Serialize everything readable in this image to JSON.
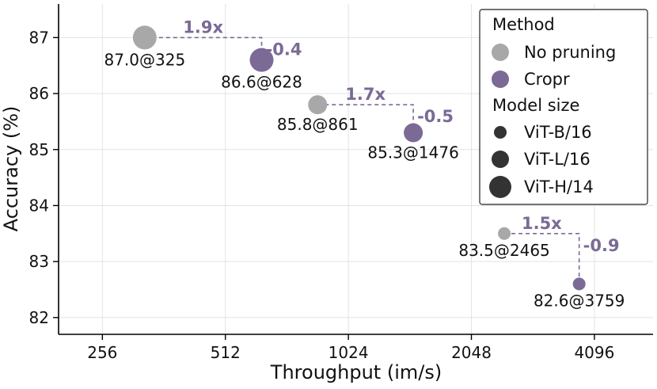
{
  "chart_data": {
    "type": "scatter",
    "xlabel": "Throughput (im/s)",
    "ylabel": "Accuracy (%)",
    "x_scale": "log2",
    "xlim": [
      200,
      5700
    ],
    "ylim": [
      81.7,
      87.6
    ],
    "x_ticks": [
      256,
      512,
      1024,
      2048,
      4096
    ],
    "x_tick_labels": [
      "256",
      "512",
      "1024",
      "2048",
      "4096"
    ],
    "y_ticks": [
      82,
      83,
      84,
      85,
      86,
      87
    ],
    "y_tick_labels": [
      "82",
      "83",
      "84",
      "85",
      "86",
      "87"
    ],
    "grid": true,
    "colors": {
      "no_pruning": "#a8a8a8",
      "cropr": "#7b6a96",
      "annotation": "#7b6a96",
      "legend_marker": "#333333"
    },
    "series": [
      {
        "name": "No pruning",
        "color_key": "no_pruning",
        "points": [
          {
            "model": "ViT-H/14",
            "x": 325,
            "y": 87.0,
            "label": "87.0@325"
          },
          {
            "model": "ViT-L/16",
            "x": 861,
            "y": 85.8,
            "label": "85.8@861"
          },
          {
            "model": "ViT-B/16",
            "x": 2465,
            "y": 83.5,
            "label": "83.5@2465"
          }
        ]
      },
      {
        "name": "Cropr",
        "color_key": "cropr",
        "points": [
          {
            "model": "ViT-H/14",
            "x": 628,
            "y": 86.6,
            "label": "86.6@628"
          },
          {
            "model": "ViT-L/16",
            "x": 1476,
            "y": 85.3,
            "label": "85.3@1476"
          },
          {
            "model": "ViT-B/16",
            "x": 3759,
            "y": 82.6,
            "label": "82.6@3759"
          }
        ]
      }
    ],
    "annotations": [
      {
        "from_x": 325,
        "from_y": 87.0,
        "to_x": 628,
        "to_y": 86.6,
        "speedup": "1.9x",
        "delta": "-0.4"
      },
      {
        "from_x": 861,
        "from_y": 85.8,
        "to_x": 1476,
        "to_y": 85.3,
        "speedup": "1.7x",
        "delta": "-0.5"
      },
      {
        "from_x": 2465,
        "from_y": 83.5,
        "to_x": 3759,
        "to_y": 82.6,
        "speedup": "1.5x",
        "delta": "-0.9"
      }
    ],
    "legend": {
      "position": "top-right",
      "method_title": "Method",
      "method_entries": [
        "No pruning",
        "Cropr"
      ],
      "size_title": "Model size",
      "size_entries": [
        "ViT-B/16",
        "ViT-L/16",
        "ViT-H/14"
      ]
    }
  }
}
